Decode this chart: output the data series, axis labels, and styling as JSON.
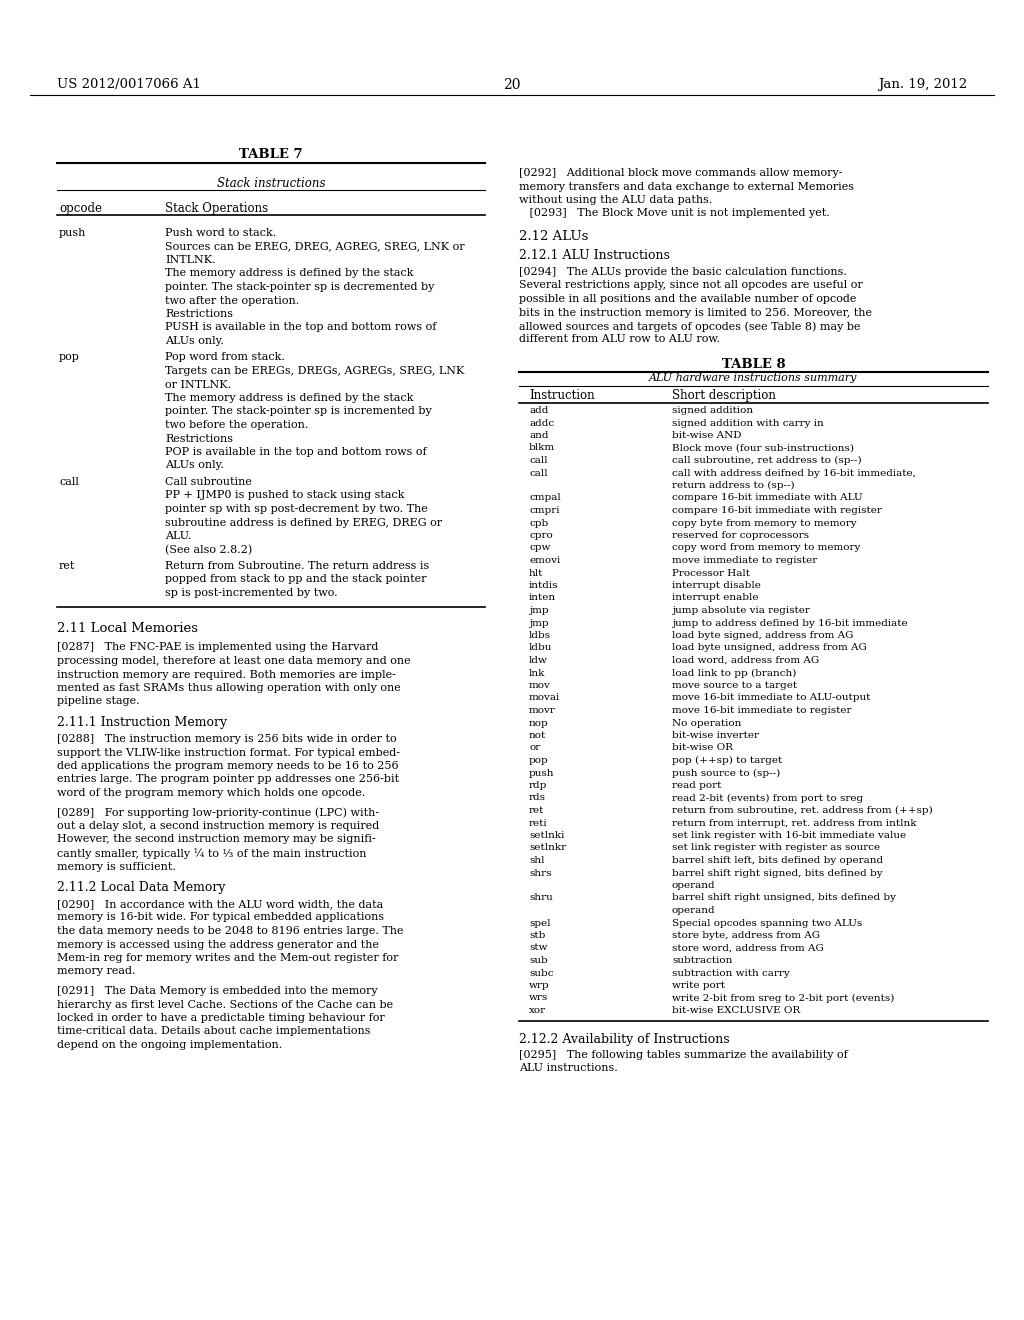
{
  "bg_color": "#ffffff",
  "header_left": "US 2012/0017066 A1",
  "header_right": "Jan. 19, 2012",
  "page_number": "20",
  "table7_title": "TABLE 7",
  "table7_subtitle": "Stack instructions",
  "table7_col1_header": "opcode",
  "table7_col2_header": "Stack Operations",
  "table7_rows": [
    {
      "opcode": "push",
      "desc": "Push word to stack.\nSources can be EREG, DREG, AGREG, SREG, LNK or\nINTLNK.\nThe memory address is defined by the stack\npointer. The stack-pointer sp is decremented by\ntwo after the operation.\nRestrictions\nPUSH is available in the top and bottom rows of\nALUs only."
    },
    {
      "opcode": "pop",
      "desc": "Pop word from stack.\nTargets can be EREGs, DREGs, AGREGs, SREG, LNK\nor INTLNK.\nThe memory address is defined by the stack\npointer. The stack-pointer sp is incremented by\ntwo before the operation.\nRestrictions\nPOP is available in the top and bottom rows of\nALUs only."
    },
    {
      "opcode": "call",
      "desc": "Call subroutine\nPP + IJMP0 is pushed to stack using stack\npointer sp with sp post-decrement by two. The\nsubroutine address is defined by EREG, DREG or\nALU.\n(See also 2.8.2)"
    },
    {
      "opcode": "ret",
      "desc": "Return from Subroutine. The return address is\npopped from stack to pp and the stack pointer\nsp is post-incremented by two."
    }
  ],
  "section_211": "2.11 Local Memories",
  "para_287": "[0287]   The FNC-PAE is implemented using the Harvard\nprocessing model, therefore at least one data memory and one\ninstruction memory are required. Both memories are imple-\nmented as fast SRAMs thus allowing operation with only one\npipeline stage.",
  "section_2111": "2.11.1 Instruction Memory",
  "para_288": "[0288]   The instruction memory is 256 bits wide in order to\nsupport the VLIW-like instruction format. For typical embed-\nded applications the program memory needs to be 16 to 256\nentries large. The program pointer pp addresses one 256-bit\nword of the program memory which holds one opcode.",
  "para_289": "[0289]   For supporting low-priority-continue (LPC) with-\nout a delay slot, a second instruction memory is required\nHowever, the second instruction memory may be signifi-\ncantly smaller, typically ¼ to ⅓ of the main instruction\nmemory is sufficient.",
  "section_2112": "2.11.2 Local Data Memory",
  "para_290": "[0290]   In accordance with the ALU word width, the data\nmemory is 16-bit wide. For typical embedded applications\nthe data memory needs to be 2048 to 8196 entries large. The\nmemory is accessed using the address generator and the\nMem-in reg for memory writes and the Mem-out register for\nmemory read.",
  "para_291": "[0291]   The Data Memory is embedded into the memory\nhierarchy as first level Cache. Sections of the Cache can be\nlocked in order to have a predictable timing behaviour for\ntime-critical data. Details about cache implementations\ndepend on the ongoing implementation.",
  "right_para_292_lines": [
    "[0292]   Additional block move commands allow memory-",
    "memory transfers and data exchange to external Memories",
    "without using the ALU data paths."
  ],
  "right_para_293_lines": [
    "   [0293]   The Block Move unit is not implemented yet."
  ],
  "section_212": "2.12 ALUs",
  "section_2121": "2.12.1 ALU Instructions",
  "para_294_lines": [
    "[0294]   The ALUs provide the basic calculation functions.",
    "Several restrictions apply, since not all opcodes are useful or",
    "possible in all positions and the available number of opcode",
    "bits in the instruction memory is limited to 256. Moreover, the",
    "allowed sources and targets of opcodes (see Table 8) may be",
    "different from ALU row to ALU row."
  ],
  "table8_title": "TABLE 8",
  "table8_subtitle": "ALU hardware instructions summary",
  "table8_col1_header": "Instruction",
  "table8_col2_header": "Short description",
  "table8_rows": [
    [
      "add",
      "signed addition",
      1
    ],
    [
      "addc",
      "signed addition with carry in",
      1
    ],
    [
      "and",
      "bit-wise AND",
      1
    ],
    [
      "blkm",
      "Block move (four sub-instructions)",
      1
    ],
    [
      "call",
      "call subroutine, ret address to (sp--)",
      1
    ],
    [
      "call",
      "call with address deifned by 16-bit immediate,\nreturn address to (sp--)",
      2
    ],
    [
      "cmpal",
      "compare 16-bit immediate with ALU",
      1
    ],
    [
      "cmpri",
      "compare 16-bit immediate with register",
      1
    ],
    [
      "cpb",
      "copy byte from memory to memory",
      1
    ],
    [
      "cpro",
      "reserved for coprocessors",
      1
    ],
    [
      "cpw",
      "copy word from memory to memory",
      1
    ],
    [
      "emovi",
      "move immediate to register",
      1
    ],
    [
      "hlt",
      "Processor Halt",
      1
    ],
    [
      "intdis",
      "interrupt disable",
      1
    ],
    [
      "inten",
      "interrupt enable",
      1
    ],
    [
      "jmp",
      "jump absolute via register",
      1
    ],
    [
      "jmp",
      "jump to address defined by 16-bit immediate",
      1
    ],
    [
      "ldbs",
      "load byte signed, address from AG",
      1
    ],
    [
      "ldbu",
      "load byte unsigned, address from AG",
      1
    ],
    [
      "ldw",
      "load word, address from AG",
      1
    ],
    [
      "lnk",
      "load link to pp (branch)",
      1
    ],
    [
      "mov",
      "move source to a target",
      1
    ],
    [
      "movai",
      "move 16-bit immediate to ALU-output",
      1
    ],
    [
      "movr",
      "move 16-bit immediate to register",
      1
    ],
    [
      "nop",
      "No operation",
      1
    ],
    [
      "not",
      "bit-wise inverter",
      1
    ],
    [
      "or",
      "bit-wise OR",
      1
    ],
    [
      "pop",
      "pop (++sp) to target",
      1
    ],
    [
      "push",
      "push source to (sp--)",
      1
    ],
    [
      "rdp",
      "read port",
      1
    ],
    [
      "rds",
      "read 2-bit (events) from port to sreg",
      1
    ],
    [
      "ret",
      "return from subroutine, ret. address from (++sp)",
      1
    ],
    [
      "reti",
      "return from interrupt, ret. address from intlnk",
      1
    ],
    [
      "setlnki",
      "set link register with 16-bit immediate value",
      1
    ],
    [
      "setlnkr",
      "set link register with register as source",
      1
    ],
    [
      "shl",
      "barrel shift left, bits defined by operand",
      1
    ],
    [
      "shrs",
      "barrel shift right signed, bits defined by\noperand",
      2
    ],
    [
      "shru",
      "barrel shift right unsigned, bits defined by\noperand",
      2
    ],
    [
      "spel",
      "Special opcodes spanning two ALUs",
      1
    ],
    [
      "stb",
      "store byte, address from AG",
      1
    ],
    [
      "stw",
      "store word, address from AG",
      1
    ],
    [
      "sub",
      "subtraction",
      1
    ],
    [
      "subc",
      "subtraction with carry",
      1
    ],
    [
      "wrp",
      "write port",
      1
    ],
    [
      "wrs",
      "write 2-bit from sreg to 2-bit port (events)",
      1
    ],
    [
      "xor",
      "bit-wise EXCLUSIVE OR",
      1
    ]
  ],
  "section_2122": "2.12.2 Availability of Instructions",
  "para_295_lines": [
    "[0295]   The following tables summarize the availability of",
    "ALU instructions."
  ]
}
